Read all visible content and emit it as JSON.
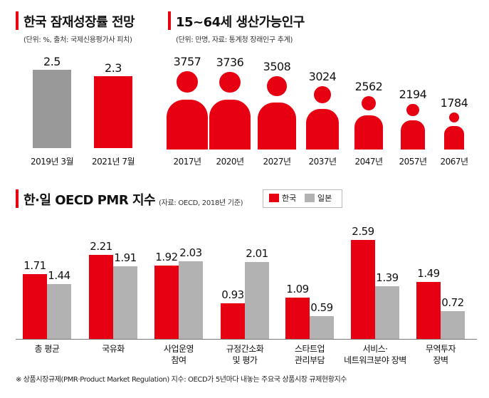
{
  "colors": {
    "korea": "#e60012",
    "japan": "#b2b2b2",
    "gray_bar": "#999999"
  },
  "chart_data": [
    {
      "type": "bar",
      "title": "한국 잠재성장률 전망",
      "subtitle": "(단위: %, 출처: 국제신용평가사 피치)",
      "categories": [
        "2019년 3월",
        "2021년 7월"
      ],
      "values": [
        2.5,
        2.3
      ]
    },
    {
      "type": "bar",
      "title": "15~64세 생산가능인구",
      "subtitle": "(단위: 만명, 자료: 통계청 장래인구 추계)",
      "categories": [
        "2017년",
        "2020년",
        "2027년",
        "2037년",
        "2047년",
        "2057년",
        "2067년"
      ],
      "values": [
        3757,
        3736,
        3508,
        3024,
        2562,
        2194,
        1784
      ]
    },
    {
      "type": "bar",
      "title": "한·일 OECD PMR 지수",
      "subtitle": "(자료: OECD, 2018년 기준)",
      "categories": [
        [
          "총 평균"
        ],
        [
          "국유화"
        ],
        [
          "사업운영",
          "참여"
        ],
        [
          "규정간소화",
          "및 평가"
        ],
        [
          "스타트업",
          "관리부담"
        ],
        [
          "서비스·",
          "네트워크분야 장벽"
        ],
        [
          "무역투자",
          "장벽"
        ]
      ],
      "series": [
        {
          "name": "한국",
          "values": [
            1.71,
            2.21,
            1.92,
            0.93,
            1.09,
            2.59,
            1.49
          ]
        },
        {
          "name": "일본",
          "values": [
            1.44,
            1.91,
            2.03,
            2.01,
            0.59,
            1.39,
            0.72
          ]
        }
      ],
      "footnote": "※ 상품시장규제(PMR·Product Market Regulation) 지수: OECD가 5년마다 내놓는 주요국 상품시장 규제현황지수"
    }
  ]
}
